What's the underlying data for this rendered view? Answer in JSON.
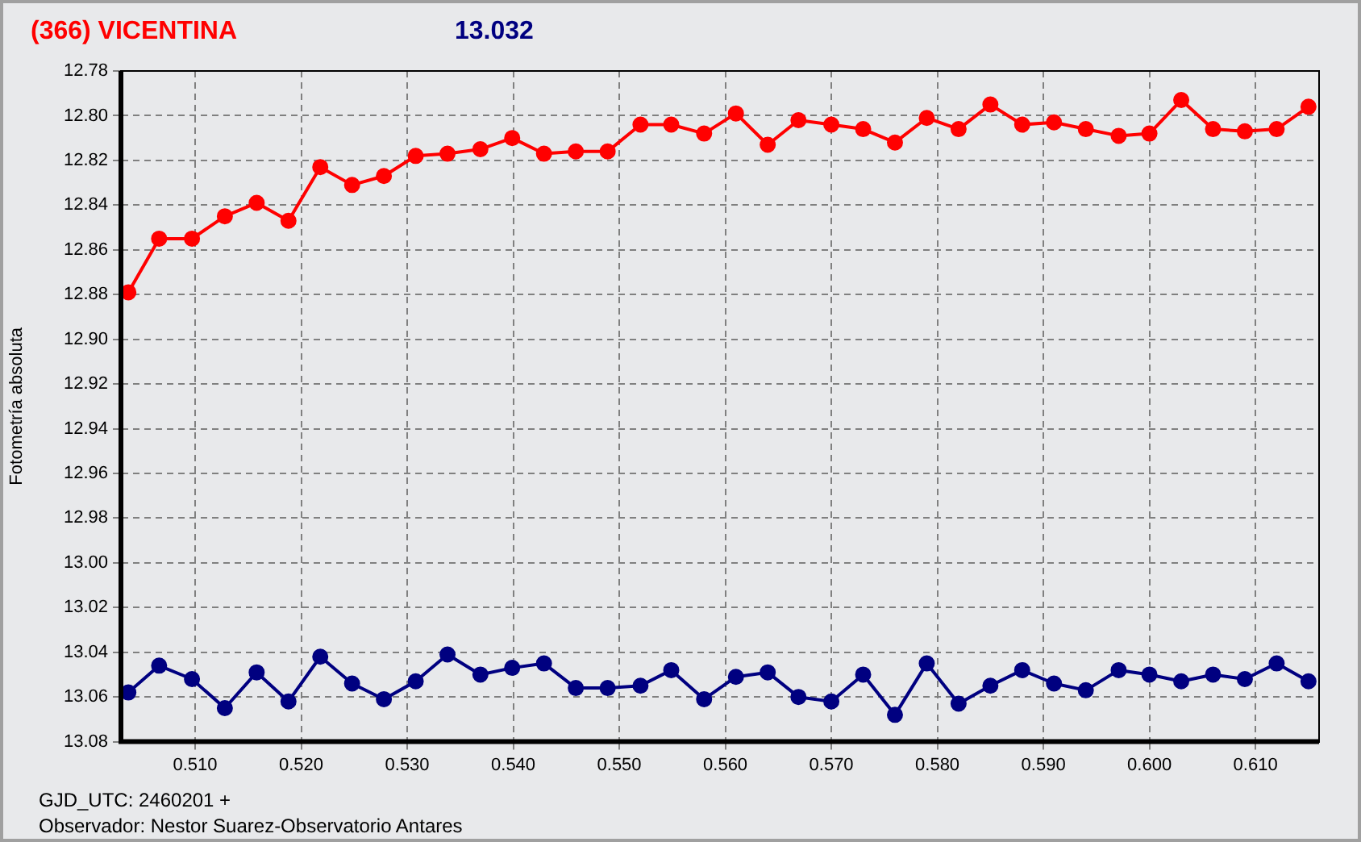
{
  "chart_data": {
    "type": "line",
    "title": "(366) VICENTINA",
    "subtitle": "13.032",
    "xlabel": "GJD_UTC: 2460201 +",
    "ylabel": "Fotometría absoluta",
    "annotations": [
      "Observador: Nestor Suarez-Observatorio Antares"
    ],
    "x": [
      0.5037,
      0.5066,
      0.5097,
      0.5128,
      0.5158,
      0.5188,
      0.5218,
      0.5248,
      0.5278,
      0.5308,
      0.5338,
      0.5369,
      0.5399,
      0.5429,
      0.5459,
      0.5489,
      0.552,
      0.5549,
      0.558,
      0.561,
      0.564,
      0.5669,
      0.57,
      0.573,
      0.576,
      0.579,
      0.582,
      0.585,
      0.588,
      0.591,
      0.594,
      0.5971,
      0.6,
      0.603,
      0.606,
      0.609,
      0.612,
      0.615
    ],
    "series": [
      {
        "color": "#ff0000",
        "values": [
          12.879,
          12.855,
          12.855,
          12.845,
          12.839,
          12.847,
          12.823,
          12.831,
          12.827,
          12.818,
          12.817,
          12.815,
          12.81,
          12.817,
          12.816,
          12.816,
          12.804,
          12.804,
          12.808,
          12.799,
          12.813,
          12.802,
          12.804,
          12.806,
          12.812,
          12.801,
          12.806,
          12.795,
          12.804,
          12.803,
          12.806,
          12.809,
          12.808,
          12.793,
          12.806,
          12.807,
          12.806,
          12.796
        ]
      },
      {
        "color": "#000080",
        "values": [
          13.058,
          13.046,
          13.052,
          13.065,
          13.049,
          13.062,
          13.042,
          13.054,
          13.061,
          13.053,
          13.041,
          13.05,
          13.047,
          13.045,
          13.056,
          13.056,
          13.055,
          13.048,
          13.061,
          13.051,
          13.049,
          13.06,
          13.062,
          13.05,
          13.068,
          13.045,
          13.063,
          13.055,
          13.048,
          13.054,
          13.057,
          13.048,
          13.05,
          13.053,
          13.05,
          13.052,
          13.045,
          13.053
        ]
      }
    ],
    "xlim": [
      0.503,
      0.616
    ],
    "xticks": [
      {
        "value": 0.51,
        "label": "0.510"
      },
      {
        "value": 0.52,
        "label": "0.520"
      },
      {
        "value": 0.53,
        "label": "0.530"
      },
      {
        "value": 0.54,
        "label": "0.540"
      },
      {
        "value": 0.55,
        "label": "0.550"
      },
      {
        "value": 0.56,
        "label": "0.560"
      },
      {
        "value": 0.57,
        "label": "0.570"
      },
      {
        "value": 0.58,
        "label": "0.580"
      },
      {
        "value": 0.59,
        "label": "0.590"
      },
      {
        "value": 0.6,
        "label": "0.600"
      },
      {
        "value": 0.61,
        "label": "0.610"
      }
    ],
    "ylim": [
      13.08,
      12.78
    ],
    "yticks": [
      {
        "value": 12.78,
        "label": "12.78"
      },
      {
        "value": 12.8,
        "label": "12.80"
      },
      {
        "value": 12.82,
        "label": "12.82"
      },
      {
        "value": 12.84,
        "label": "12.84"
      },
      {
        "value": 12.86,
        "label": "12.86"
      },
      {
        "value": 12.88,
        "label": "12.88"
      },
      {
        "value": 12.9,
        "label": "12.90"
      },
      {
        "value": 12.92,
        "label": "12.92"
      },
      {
        "value": 12.94,
        "label": "12.94"
      },
      {
        "value": 12.96,
        "label": "12.96"
      },
      {
        "value": 12.98,
        "label": "12.98"
      },
      {
        "value": 13.0,
        "label": "13.00"
      },
      {
        "value": 13.02,
        "label": "13.02"
      },
      {
        "value": 13.04,
        "label": "13.04"
      },
      {
        "value": 13.06,
        "label": "13.06"
      },
      {
        "value": 13.08,
        "label": "13.08"
      }
    ],
    "grid": true,
    "legend": false,
    "marker": "circle",
    "line_style": "solid"
  }
}
